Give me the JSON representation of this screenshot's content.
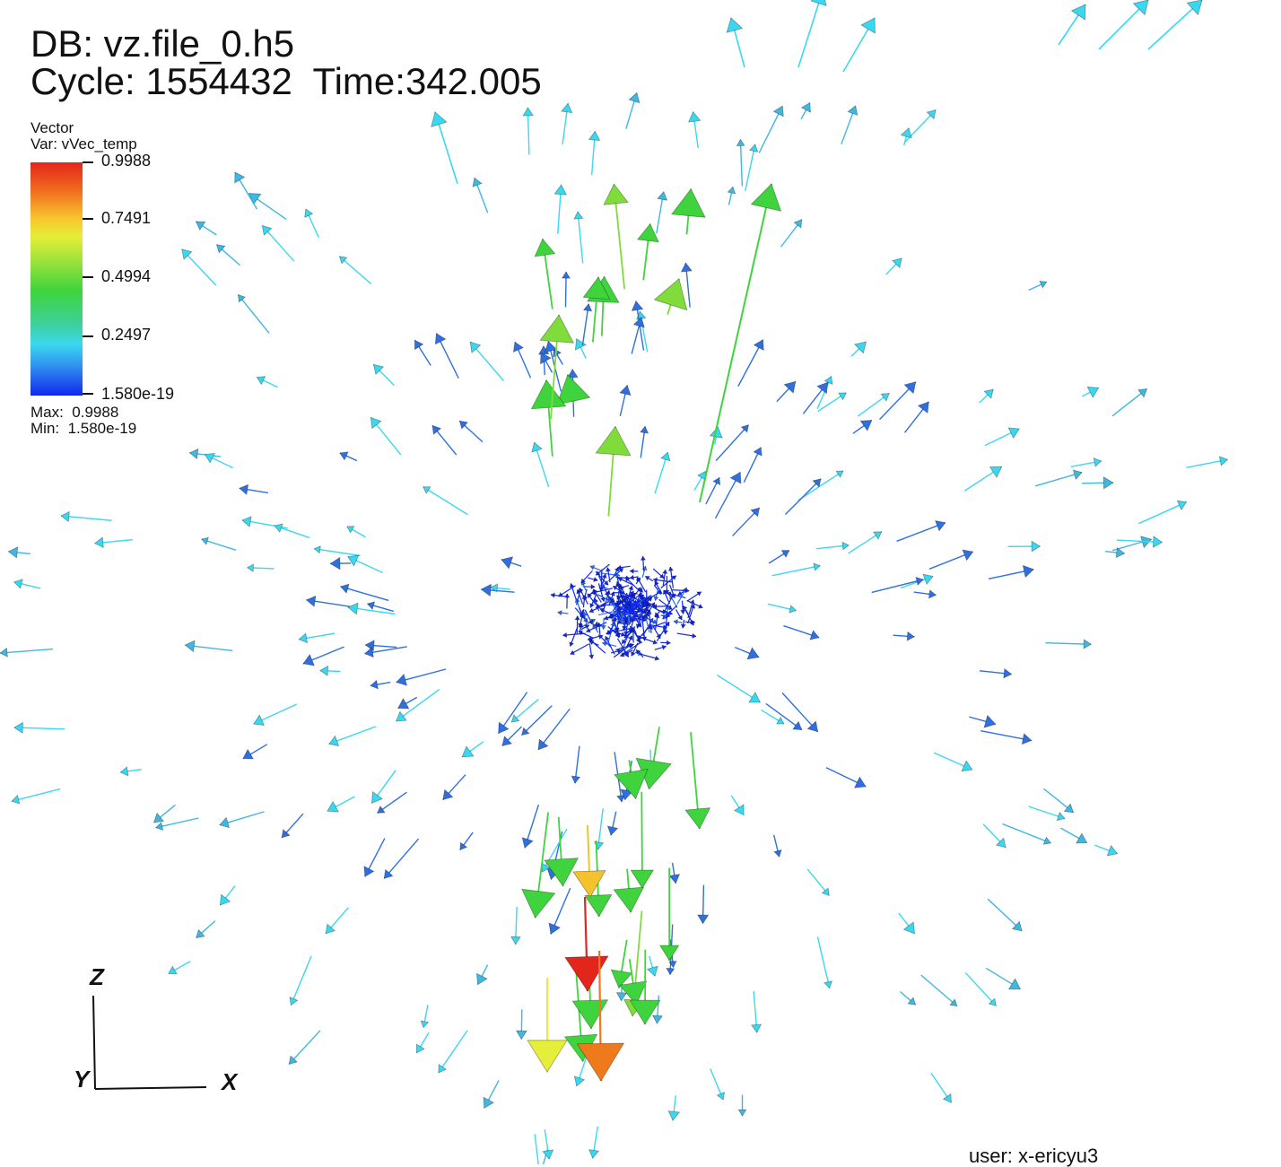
{
  "header": {
    "db_label": "DB: vz.file_0.h5",
    "cycle_label": "Cycle:",
    "cycle_value": "1554432",
    "time_label": "Time:",
    "time_value": "342.005"
  },
  "legend": {
    "plot_type": "Vector",
    "var_label": "Var: vVec_temp",
    "ticks": [
      "0.9988",
      "0.7491",
      "0.4994",
      "0.2497",
      "1.580e-19"
    ],
    "max_label": "Max:",
    "max_value": "0.9988",
    "min_label": "Min:",
    "min_value": "1.580e-19"
  },
  "axes": {
    "z": "Z",
    "y": "Y",
    "x": "X"
  },
  "footer": {
    "user": "user: x-ericyu3"
  },
  "colors": {
    "low": "#1027ee",
    "mid_low": "#3ad8f0",
    "mid": "#3fd43d",
    "mid_high": "#e5ee38",
    "high": "#e3261b"
  }
}
